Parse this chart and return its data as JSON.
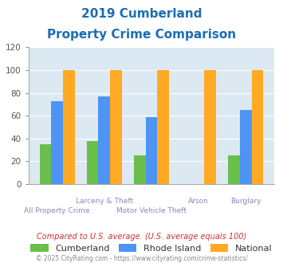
{
  "title_line1": "2019 Cumberland",
  "title_line2": "Property Crime Comparison",
  "cumberland_vals": [
    35,
    38,
    25,
    0,
    25
  ],
  "rhode_island_vals": [
    73,
    77,
    59,
    0,
    65
  ],
  "national_vals": [
    100,
    100,
    100,
    100,
    100
  ],
  "color_cumberland": "#6abf4b",
  "color_rhode_island": "#4d94f5",
  "color_national": "#ffaa22",
  "ylim": [
    0,
    120
  ],
  "yticks": [
    0,
    20,
    40,
    60,
    80,
    100,
    120
  ],
  "background_color": "#d9e8f0",
  "plot_bg_color": "#dce9f2",
  "title_color": "#1a6db5",
  "footer_text": "Compared to U.S. average. (U.S. average equals 100)",
  "copyright_text": "© 2025 CityRating.com - https://www.cityrating.com/crime-statistics/",
  "legend_labels": [
    "Cumberland",
    "Rhode Island",
    "National"
  ],
  "top_labels": [
    "",
    "Larceny & Theft",
    "",
    "Arson",
    "Burglary"
  ],
  "bot_labels": [
    "All Property Crime",
    "",
    "Motor Vehicle Theft",
    "",
    ""
  ],
  "bar_width": 0.25,
  "label_color": "#8888bb",
  "footer_color": "#cc3333",
  "copy_color": "#888888"
}
